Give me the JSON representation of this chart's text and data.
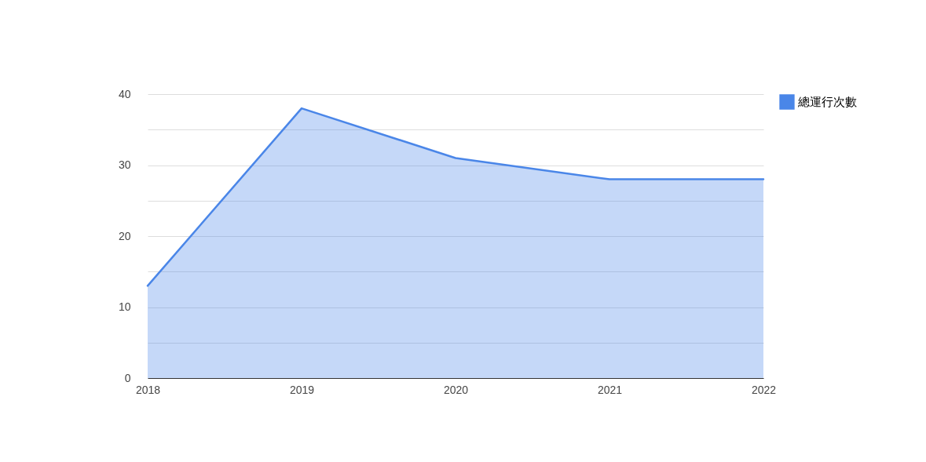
{
  "chart_data": {
    "type": "area",
    "categories": [
      "2018",
      "2019",
      "2020",
      "2021",
      "2022"
    ],
    "series": [
      {
        "name": "總運行次數",
        "color": "#4a86e8",
        "values": [
          13,
          38,
          31,
          28,
          28
        ]
      }
    ],
    "ylim": [
      0,
      40
    ],
    "yticks": [
      0,
      {
        "value": 5,
        "label": null
      },
      10,
      {
        "value": 15,
        "label": null
      },
      20,
      {
        "value": 25,
        "label": null
      },
      30,
      {
        "value": 35,
        "label": null
      },
      40
    ],
    "grid": "y",
    "legend": "top right"
  }
}
